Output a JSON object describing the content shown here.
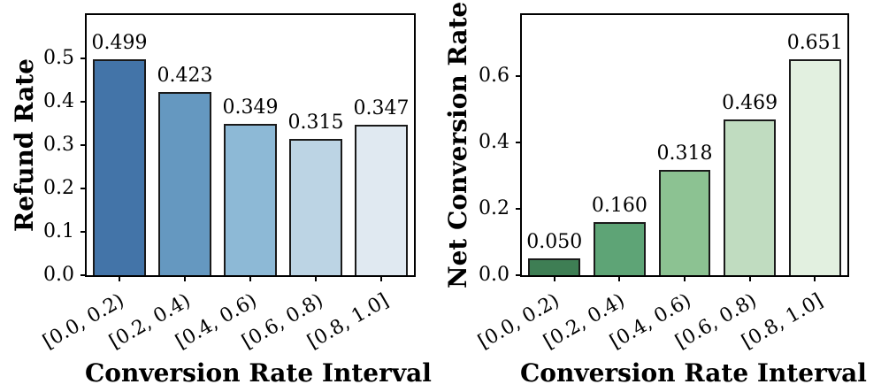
{
  "chart_data": [
    {
      "type": "bar",
      "ylabel": "Refund Rate",
      "xlabel": "Conversion Rate Interval",
      "categories": [
        "[0.0, 0.2)",
        "[0.2, 0.4)",
        "[0.4, 0.6)",
        "[0.6, 0.8)",
        "[0.8, 1.0]"
      ],
      "values": [
        0.499,
        0.423,
        0.349,
        0.315,
        0.347
      ],
      "value_labels": [
        "0.499",
        "0.423",
        "0.349",
        "0.315",
        "0.347"
      ],
      "yticks": [
        0.0,
        0.1,
        0.2,
        0.3,
        0.4,
        0.5
      ],
      "ytick_labels": [
        "0.0",
        "0.1",
        "0.2",
        "0.3",
        "0.4",
        "0.5"
      ],
      "ylim": [
        0,
        0.601
      ],
      "bar_colors": [
        "#4374a8",
        "#6598c0",
        "#8db9d6",
        "#bcd4e4",
        "#e0e9f1"
      ],
      "bar_edge_color": "#1a1a1a",
      "grid": false,
      "legend": null
    },
    {
      "type": "bar",
      "ylabel": "Net Conversion Rate",
      "xlabel": "Conversion Rate Interval",
      "categories": [
        "[0.0, 0.2)",
        "[0.2, 0.4)",
        "[0.4, 0.6)",
        "[0.6, 0.8)",
        "[0.8, 1.0]"
      ],
      "values": [
        0.05,
        0.16,
        0.318,
        0.469,
        0.651
      ],
      "value_labels": [
        "0.050",
        "0.160",
        "0.318",
        "0.469",
        "0.651"
      ],
      "yticks": [
        0.0,
        0.2,
        0.4,
        0.6
      ],
      "ytick_labels": [
        "0.0",
        "0.2",
        "0.4",
        "0.6"
      ],
      "ylim": [
        0,
        0.784
      ],
      "bar_colors": [
        "#3e7e54",
        "#5ea476",
        "#8cc292",
        "#c0dcc0",
        "#e2f0e0"
      ],
      "bar_edge_color": "#1a1a1a",
      "grid": false,
      "legend": null
    }
  ]
}
